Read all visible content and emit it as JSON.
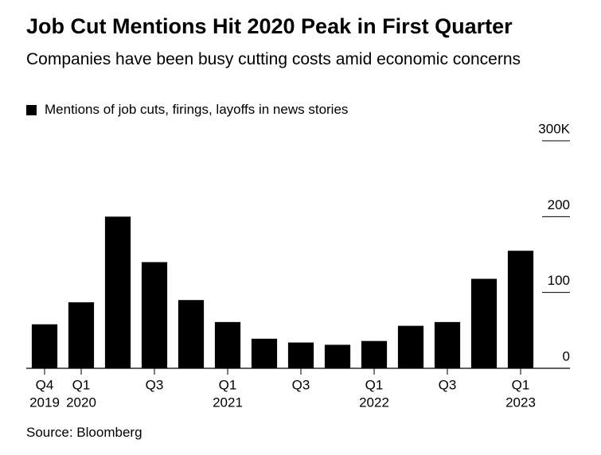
{
  "chart_data": {
    "type": "bar",
    "title": "Job Cut Mentions Hit 2020 Peak in First Quarter",
    "subtitle": "Companies have been busy cutting costs amid economic concerns",
    "series": [
      {
        "name": "Mentions of job cuts, firings, layoffs in news stories",
        "color": "#000000",
        "values": [
          58,
          87,
          200,
          140,
          90,
          61,
          39,
          34,
          31,
          36,
          56,
          61,
          118,
          155
        ]
      }
    ],
    "categories": [
      "Q4",
      "Q1",
      null,
      "Q3",
      null,
      "Q1",
      null,
      "Q3",
      null,
      "Q1",
      null,
      "Q3",
      null,
      "Q1"
    ],
    "category_years": [
      "2019",
      "2020",
      null,
      null,
      null,
      "2021",
      null,
      null,
      null,
      "2022",
      null,
      null,
      null,
      "2023"
    ],
    "ylim": [
      0,
      300
    ],
    "yticks": [
      0,
      100,
      200,
      {
        "value": 300,
        "label": "300K"
      }
    ],
    "source": "Source: Bloomberg"
  }
}
